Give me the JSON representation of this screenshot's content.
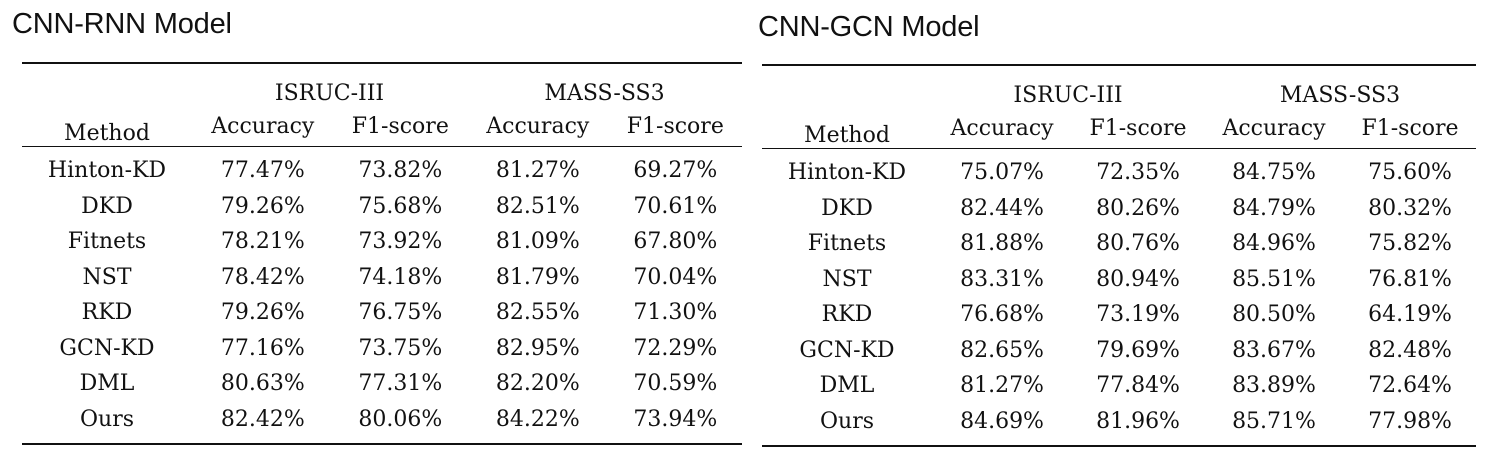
{
  "columns": {
    "method": "Method",
    "groups": [
      "ISRUC-III",
      "MASS-SS3"
    ],
    "metrics": [
      "Accuracy",
      "F1-score",
      "Accuracy",
      "F1-score"
    ]
  },
  "panels": [
    {
      "title": "CNN-RNN Model",
      "rows": [
        {
          "method": "Hinton-KD",
          "values": [
            "77.47%",
            "73.82%",
            "81.27%",
            "69.27%"
          ],
          "bold": [
            false,
            false,
            false,
            false
          ]
        },
        {
          "method": "DKD",
          "values": [
            "79.26%",
            "75.68%",
            "82.51%",
            "70.61%"
          ],
          "bold": [
            false,
            false,
            false,
            false
          ]
        },
        {
          "method": "Fitnets",
          "values": [
            "78.21%",
            "73.92%",
            "81.09%",
            "67.80%"
          ],
          "bold": [
            false,
            false,
            false,
            false
          ]
        },
        {
          "method": "NST",
          "values": [
            "78.42%",
            "74.18%",
            "81.79%",
            "70.04%"
          ],
          "bold": [
            false,
            false,
            false,
            false
          ]
        },
        {
          "method": "RKD",
          "values": [
            "79.26%",
            "76.75%",
            "82.55%",
            "71.30%"
          ],
          "bold": [
            false,
            false,
            false,
            false
          ]
        },
        {
          "method": "GCN-KD",
          "values": [
            "77.16%",
            "73.75%",
            "82.95%",
            "72.29%"
          ],
          "bold": [
            false,
            false,
            false,
            false
          ]
        },
        {
          "method": "DML",
          "values": [
            "80.63%",
            "77.31%",
            "82.20%",
            "70.59%"
          ],
          "bold": [
            false,
            false,
            false,
            false
          ]
        },
        {
          "method": "Ours",
          "method_bold": true,
          "values": [
            "82.42%",
            "80.06%",
            "84.22%",
            "73.94%"
          ],
          "bold": [
            true,
            true,
            true,
            true
          ]
        }
      ]
    },
    {
      "title": "CNN-GCN Model",
      "rows": [
        {
          "method": "Hinton-KD",
          "values": [
            "75.07%",
            "72.35%",
            "84.75%",
            "75.60%"
          ],
          "bold": [
            false,
            false,
            false,
            false
          ]
        },
        {
          "method": "DKD",
          "values": [
            "82.44%",
            "80.26%",
            "84.79%",
            "80.32%"
          ],
          "bold": [
            false,
            false,
            false,
            false
          ]
        },
        {
          "method": "Fitnets",
          "values": [
            "81.88%",
            "80.76%",
            "84.96%",
            "75.82%"
          ],
          "bold": [
            false,
            false,
            false,
            false
          ]
        },
        {
          "method": "NST",
          "values": [
            "83.31%",
            "80.94%",
            "85.51%",
            "76.81%"
          ],
          "bold": [
            false,
            false,
            false,
            false
          ]
        },
        {
          "method": "RKD",
          "values": [
            "76.68%",
            "73.19%",
            "80.50%",
            "64.19%"
          ],
          "bold": [
            false,
            false,
            false,
            false
          ]
        },
        {
          "method": "GCN-KD",
          "values": [
            "82.65%",
            "79.69%",
            "83.67%",
            "82.48%"
          ],
          "bold": [
            false,
            false,
            false,
            true
          ]
        },
        {
          "method": "DML",
          "values": [
            "81.27%",
            "77.84%",
            "83.89%",
            "72.64%"
          ],
          "bold": [
            false,
            false,
            false,
            false
          ]
        },
        {
          "method": "Ours",
          "method_bold": true,
          "values": [
            "84.69%",
            "81.96%",
            "85.71%",
            "77.98%"
          ],
          "bold": [
            true,
            true,
            true,
            false
          ]
        }
      ]
    }
  ]
}
